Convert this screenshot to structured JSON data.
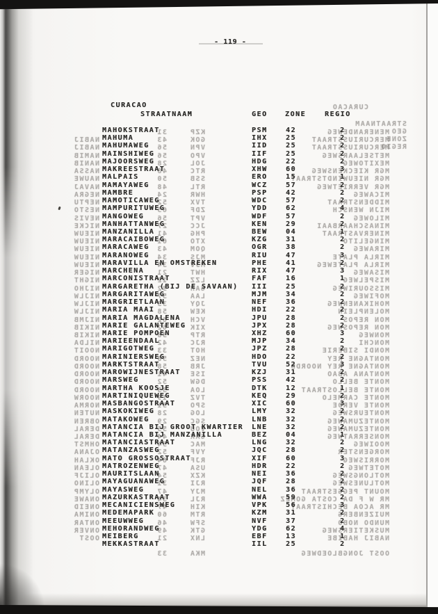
{
  "page": {
    "number_label": "- 119 -"
  },
  "table": {
    "title": "CURACAO",
    "columns": {
      "name": "STRAATNAAM",
      "geo": "GEO",
      "zone": "ZONE",
      "regio": "REGIO"
    },
    "row_fields": [
      "name",
      "geo",
      "zone",
      "regio"
    ],
    "rows": [
      [
        "MAHOKSTRAAT",
        "PSM",
        "42",
        "2"
      ],
      [
        "MAHUMA",
        "IHX",
        "25",
        "2"
      ],
      [
        "MAHUMAWEG",
        "IID",
        "25",
        "2"
      ],
      [
        "MAINSHIWEG",
        "IIF",
        "25",
        "2"
      ],
      [
        "MAJOORSWEG",
        "HDG",
        "22",
        "2"
      ],
      [
        "MAKREESTRAAT",
        "XHW",
        "60",
        "3"
      ],
      [
        "MALPAIS",
        "ERO",
        "15",
        "1"
      ],
      [
        "MAMAYAWEG",
        "WCZ",
        "57",
        "2"
      ],
      [
        "MAMBRE",
        "PSP",
        "42",
        "2"
      ],
      [
        "MAMOTICAWEG",
        "WDC",
        "57",
        "2"
      ],
      [
        "MAMPURITUWEG",
        "YDD",
        "62",
        "4"
      ],
      [
        "MANGOWEG",
        "WDF",
        "57",
        "2"
      ],
      [
        "MANHATTANWEG",
        "KEN",
        "29",
        "2"
      ],
      [
        "MANZANILLA",
        "BEW",
        "04",
        "1"
      ],
      [
        "MARACAIBOWEG",
        "KZG",
        "31",
        "2"
      ],
      [
        "MARACAWEG",
        "OGR",
        "38",
        "2"
      ],
      [
        "MARANOWEG",
        "RIU",
        "47",
        "3"
      ],
      [
        "MARAVILLA EN OMSTREKEN",
        "PHE",
        "41",
        "2"
      ],
      [
        "MARCHENA",
        "RIX",
        "47",
        "3"
      ],
      [
        "MARCONISTRAAT",
        "FAF",
        "16",
        "1"
      ],
      [
        "MARGARETHA (BIJ DE SAVAAN)",
        "III",
        "25",
        "2"
      ],
      [
        "MARGARITAWEG",
        "MJM",
        "34",
        "2"
      ],
      [
        "MARGRIETLAAN",
        "NEF",
        "36",
        "2"
      ],
      [
        "MARIA MAAI",
        "HDI",
        "22",
        "2"
      ],
      [
        "MARIA MAGDALENA",
        "JPU",
        "28",
        "2"
      ],
      [
        "MARIE GALANTEWEG",
        "JPX",
        "28",
        "2"
      ],
      [
        "MARIE POMPOEN",
        "XHZ",
        "60",
        "3"
      ],
      [
        "MARIEENDAAL",
        "MJP",
        "34",
        "2"
      ],
      [
        "MARIGOTWEG",
        "JPZ",
        "28",
        "2"
      ],
      [
        "MARINIERSWEG",
        "HDO",
        "22",
        "2"
      ],
      [
        "MARKTSTRAAT",
        "TVU",
        "52",
        "3"
      ],
      [
        "MAROWIJNESTRAAT",
        "KZJ",
        "31",
        "2"
      ],
      [
        "MARSWEG",
        "PSS",
        "42",
        "2"
      ],
      [
        "MARTHA KOOSJE",
        "DTK",
        "12",
        "1"
      ],
      [
        "MARTINIQUEWEG",
        "KEQ",
        "29",
        "2"
      ],
      [
        "MASBANGOSTRAAT",
        "XIC",
        "60",
        "3"
      ],
      [
        "MASKOKIWEG",
        "LMY",
        "32",
        "2"
      ],
      [
        "MATAKOWEG",
        "LNB",
        "32",
        "2"
      ],
      [
        "MATANCIA BIJ GROOT KWARTIER",
        "LNE",
        "32",
        "2"
      ],
      [
        "MATANCIA BIJ MANZANILLA",
        "BEZ",
        "04",
        "1"
      ],
      [
        "MATANCIASTRAAT",
        "LNG",
        "32",
        "2"
      ],
      [
        "MATANZASWEG",
        "JQC",
        "28",
        "2"
      ],
      [
        "MATO GROSSOSTRAAT",
        "XIF",
        "60",
        "3"
      ],
      [
        "MATROZENWEG",
        "HDR",
        "22",
        "2"
      ],
      [
        "MAURITSLAAN",
        "NEI",
        "36",
        "2"
      ],
      [
        "MAYAGUANAWEG",
        "JQF",
        "28",
        "2"
      ],
      [
        "MAYASWEG",
        "NEL",
        "36",
        "2"
      ],
      [
        "MAZURKASTRAAT",
        "WWA",
        "59",
        "2"
      ],
      [
        "MECANICIENSWEG",
        "VPK",
        "56",
        "3"
      ],
      [
        "MEDEMAPARK",
        "KZM",
        "31",
        "2"
      ],
      [
        "MEEUWWEG",
        "NVF",
        "37",
        "2"
      ],
      [
        "MEHORANDWEG",
        "YDG",
        "62",
        "4"
      ],
      [
        "MEIBERG",
        "EBF",
        "13",
        "1"
      ],
      [
        "MEKKASTRAAT",
        "IIL",
        "25",
        "2"
      ]
    ]
  },
  "bleedthrough": {
    "title": "CURACAO",
    "columns": {
      "name": "STRAATNAAM",
      "geo": "GEO",
      "zone": "ZONE",
      "regio": "REGIO"
    },
    "rows": [
      [
        "MENERANDEWEG",
        "KZP",
        "31",
        ""
      ],
      [
        "MERCURIUSSTRAAT",
        "GOK",
        "43",
        "NABIJ"
      ],
      [
        "MERCURIUSSTRAAT",
        "VPN",
        "56",
        "NABIJ"
      ],
      [
        "METSELAARSWEG",
        "VPO",
        "56",
        "NAMIB"
      ],
      [
        "MEXITOWEG",
        "JOL",
        "28",
        "NANIB"
      ],
      [
        "MGR KIECKENSWEG",
        "RTC",
        "48",
        "NASSA"
      ],
      [
        "MGR NIEUWINDTSTRAAT",
        "SSB",
        "50",
        "NAUWE"
      ],
      [
        "MGR VERRIETWEG",
        "RTL",
        "48",
        "NAVAJ"
      ],
      [
        "MICAWEG",
        "HWR",
        "24",
        "NEGRA"
      ],
      [
        "MIDDENSTRAAT",
        "TVX",
        "52",
        "NEPTU"
      ],
      [
        "MIJN WENSCH",
        "ZDF",
        "65",
        "NESTO"
      ],
      [
        "MILOWEG",
        "VPT",
        "56",
        "NEVIS"
      ],
      [
        "MINASCHAARBAAI",
        "JCC",
        "27",
        "NICKE"
      ],
      [
        "MINERVASTRAAT",
        "PHG",
        "41",
        "NIEUW"
      ],
      [
        "MINGELITO",
        "XTO",
        "61",
        "NIEUW"
      ],
      [
        "MIRAWEG",
        "QOM",
        "43",
        "NIEUW"
      ],
      [
        "MIRLA PLATE",
        "MJS",
        "34",
        "NIEUW"
      ],
      [
        "MIRLA PLATEWEG",
        "MJV",
        "34",
        "NIEUW"
      ],
      [
        "MISAWEG",
        "HWT",
        "21",
        "NIGER"
      ],
      [
        "MISPELWEG",
        "LZZ",
        "12",
        "NIGHT"
      ],
      [
        "MISSOURIWEG",
        "GAH",
        "32",
        "NIJHO"
      ],
      [
        "MOFIWEG",
        "LAA",
        "57",
        "NIJLW"
      ],
      [
        "MOHIKANENWEG",
        "JQY",
        "33",
        "NIJLW"
      ],
      [
        "MOLENPLEIN",
        "KEW",
        "58",
        "NIJLW"
      ],
      [
        "MON REPOS",
        "VCH",
        "62",
        "NIJMB"
      ],
      [
        "MON REPOSWEG",
        "XIK",
        "62",
        "NIKIB"
      ],
      [
        "MONWEG",
        "RTP",
        "38",
        "NIKIB"
      ],
      [
        "MONCHI",
        "RJC",
        "42",
        "NILDA"
      ],
      [
        "MONDI SIBERIE",
        "HOT",
        "33",
        "NOOIT"
      ],
      [
        "MONTAGNE REY",
        "NEZ",
        "58",
        "NOORD"
      ],
      [
        "MONTAGNE REY NOORDB",
        "JRB",
        "58",
        "NOORD"
      ],
      [
        "MONTANA ABAO",
        "ISE",
        "41",
        "NOORD"
      ],
      [
        "MONTE BELLO",
        "DGW",
        "52",
        "NOORD"
      ],
      [
        "MONTE BELLOSTRAAT",
        "LOA",
        "33",
        "NOORD"
      ],
      [
        "MONTE CARMELO",
        "TVZ",
        "19",
        "NOORW"
      ],
      [
        "MONTE VERDE",
        "SPO",
        "31",
        "NORMA"
      ],
      [
        "MONTEURSWEG",
        "LOG",
        "28",
        "NUTEN"
      ],
      [
        "MONTEZUMAWEG",
        "SGC",
        "29",
        "OBREN"
      ],
      [
        "MONTEZUMAWEG",
        "VOU",
        "55",
        "DERAL"
      ],
      [
        "MONSERRATWEG",
        "GAK",
        "44",
        "DERAL"
      ],
      [
        "MOOIWEG",
        "MAC",
        "54",
        "OHMST"
      ],
      [
        "MORGENSTER",
        "YVF",
        "52",
        "OJANA"
      ],
      [
        "MORRISWEG",
        "RJF",
        "64",
        "OKLAH"
      ],
      [
        "MOTETWEG",
        "USA",
        "47",
        "OLEAN"
      ],
      [
        "MOTLONGSWEG",
        "KZX",
        "54",
        "OLIJF"
      ],
      [
        "MOTLUNESWEG",
        "RJI",
        "31",
        "OLINO"
      ],
      [
        "MOUNT PEGGESTRAAT",
        "MJY",
        "47",
        "OLYMP"
      ],
      [
        "MR W F DA COSTA GOMEZ",
        "RJL",
        "34",
        "ONAWE"
      ],
      [
        "MR ACOA BECHISTRAAT",
        "KIH",
        "47",
        "ONEID"
      ],
      [
        "MUIZENBERG",
        "RTM",
        "60",
        "ONIMA"
      ],
      [
        "MUNDO NOBO",
        "SFW",
        "46",
        "ONTAR"
      ],
      [
        "MUSKETIERSWEG",
        "GTK",
        "49",
        "ONVER"
      ],
      [
        "NABIJ HABIBE",
        "LNX",
        "21",
        "OOST"
      ],
      [
        "",
        "",
        "",
        ""
      ],
      [
        "OOST JONGBLOEDWEG",
        "MKA",
        "33",
        ""
      ],
      [
        "",
        "",
        "",
        ""
      ]
    ]
  }
}
